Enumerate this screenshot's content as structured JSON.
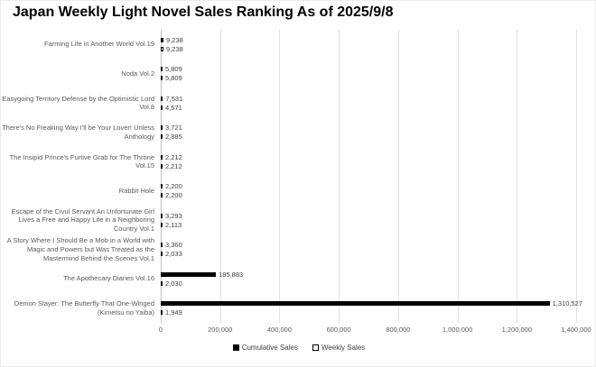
{
  "title": "Japan Weekly Light Novel Sales Ranking As of 2025/9/8",
  "chart_data": {
    "type": "bar",
    "orientation": "horizontal",
    "title": "Japan Weekly Light Novel Sales Ranking As of 2025/9/8",
    "categories": [
      "Farming Life in Another World Vol.19",
      "Noda Vol.2",
      "Easygoing Territory Defense by the Optimistic Lord Vol.8",
      "There's No Freaking Way I'll be Your Lover! Unless Anthology",
      "The Insipid Prince's Furtive Grab for The Throne Vol.15",
      "Rabbit Hole",
      "Escape of the Civul Servant An Unfortunate Girl Lives a Free and Happy Life in a Neighboring Country Vol.1",
      "A Story Where I Should Be a Mob in a World with Magic and Powers but Was Treated as the Mastermind Behind the Scenes Vol.1",
      "The Apothecary Diaries Vol.16",
      "Demon Slayer: The Butterfly That One-Winged (Kimetsu no Yaiba)"
    ],
    "series": [
      {
        "name": "Cumulative Sales",
        "color": "#000000",
        "values": [
          9238,
          5809,
          7531,
          3721,
          2212,
          2200,
          3293,
          3360,
          185883,
          1310527
        ]
      },
      {
        "name": "Weekly Sales",
        "color": "#FFFFFF",
        "values": [
          9238,
          5809,
          4571,
          2885,
          2212,
          2200,
          2113,
          2033,
          2030,
          1949
        ]
      }
    ],
    "value_labels": [
      [
        "9,238",
        "9,238"
      ],
      [
        "5,809",
        "5,809"
      ],
      [
        "7,531",
        "4,571"
      ],
      [
        "3,721",
        "2,885"
      ],
      [
        "2,212",
        "2,212"
      ],
      [
        "2,200",
        "2,200"
      ],
      [
        "3,293",
        "2,113"
      ],
      [
        "3,360",
        "2,033"
      ],
      [
        "185,883",
        "2,030"
      ],
      [
        "1,310,527",
        "1,949"
      ]
    ],
    "xlim": [
      0,
      1400000
    ],
    "x_ticks": [
      "0",
      "200,000",
      "400,000",
      "600,000",
      "800,000",
      "1,000,000",
      "1,200,000",
      "1,400,000"
    ],
    "grid": true,
    "legend_position": "bottom",
    "colors": {
      "bar_fill": "#000000",
      "bar_outline": "#000000",
      "gridline": "#e2e2e2",
      "axis_line": "#bfbfbf",
      "label_text": "#595959",
      "value_text": "#404040"
    }
  }
}
